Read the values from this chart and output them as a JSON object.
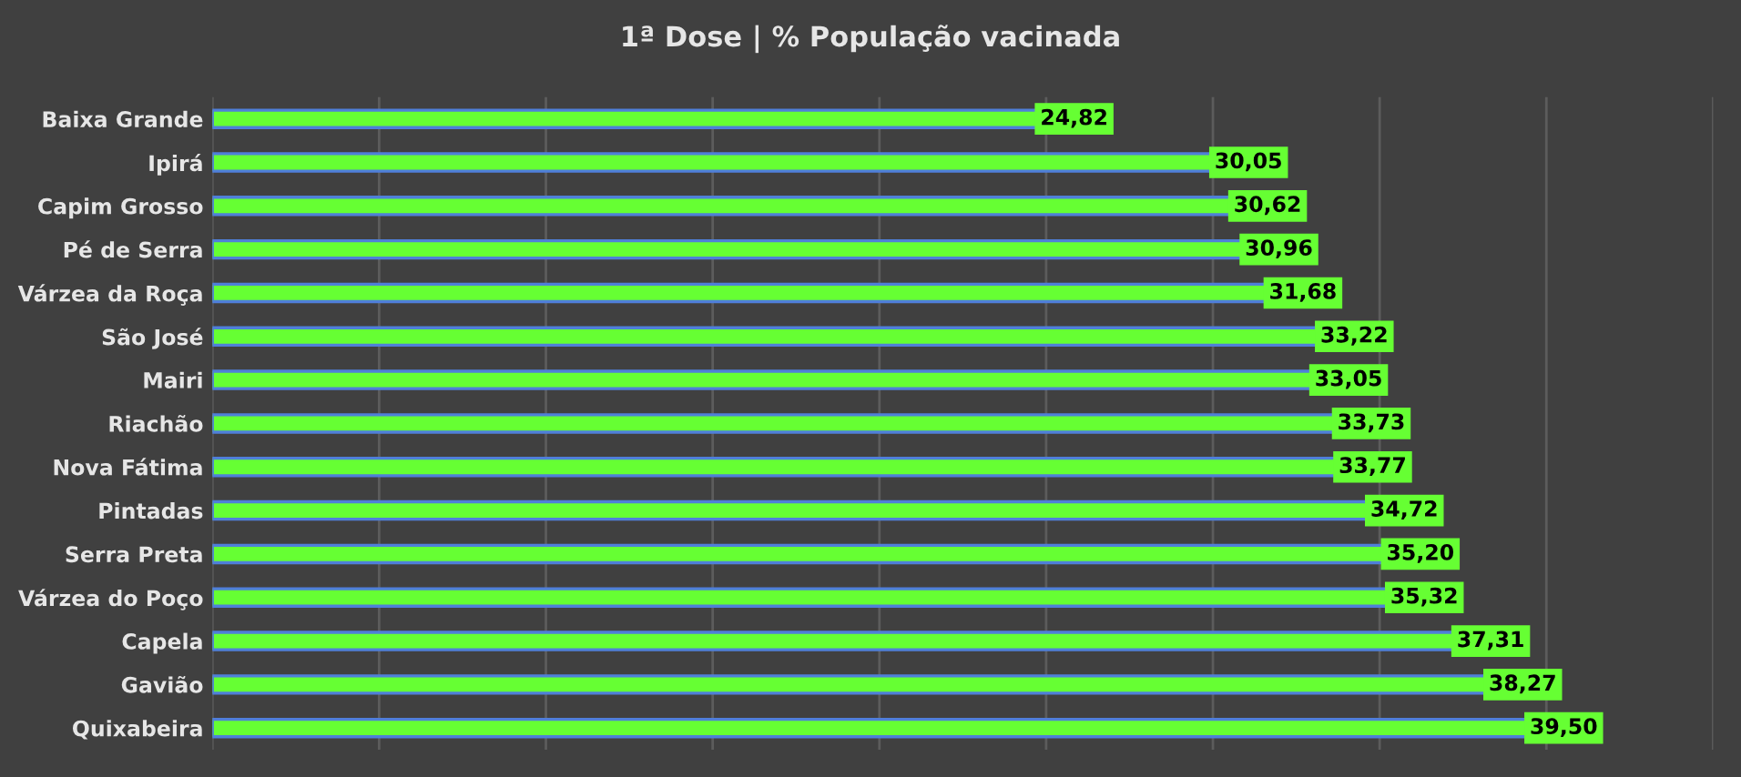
{
  "chart_data": {
    "type": "bar",
    "orientation": "horizontal",
    "title": "1ª Dose | % População vacinada",
    "categories": [
      "Baixa Grande",
      "Ipirá",
      "Capim Grosso",
      "Pé de Serra",
      "Várzea da Roça",
      "São José",
      "Mairi",
      "Riachão",
      "Nova Fátima",
      "Pintadas",
      "Serra Preta",
      "Várzea do Poço",
      "Capela",
      "Gavião",
      "Quixabeira"
    ],
    "values": [
      24.82,
      30.05,
      30.62,
      30.96,
      31.68,
      33.22,
      33.05,
      33.73,
      33.77,
      34.72,
      35.2,
      35.32,
      37.31,
      38.27,
      39.5
    ],
    "value_labels": [
      "24,82",
      "30,05",
      "30,62",
      "30,96",
      "31,68",
      "33,22",
      "33,05",
      "33,73",
      "33,77",
      "34,72",
      "35,20",
      "35,32",
      "37,31",
      "38,27",
      "39,50"
    ],
    "color": "#66ff33",
    "xlim": [
      0,
      45
    ],
    "xticks": [
      {
        "value": 0,
        "label": null
      },
      {
        "value": 5,
        "label": null
      },
      {
        "value": 10,
        "label": null
      },
      {
        "value": 15,
        "label": null
      },
      {
        "value": 20,
        "label": null
      },
      {
        "value": 25,
        "label": null
      },
      {
        "value": 30,
        "label": null
      },
      {
        "value": 35,
        "label": null
      },
      {
        "value": 40,
        "label": null
      },
      {
        "value": 45,
        "label": null
      }
    ],
    "grid": "x",
    "tick_labels": "y",
    "legend": false
  }
}
